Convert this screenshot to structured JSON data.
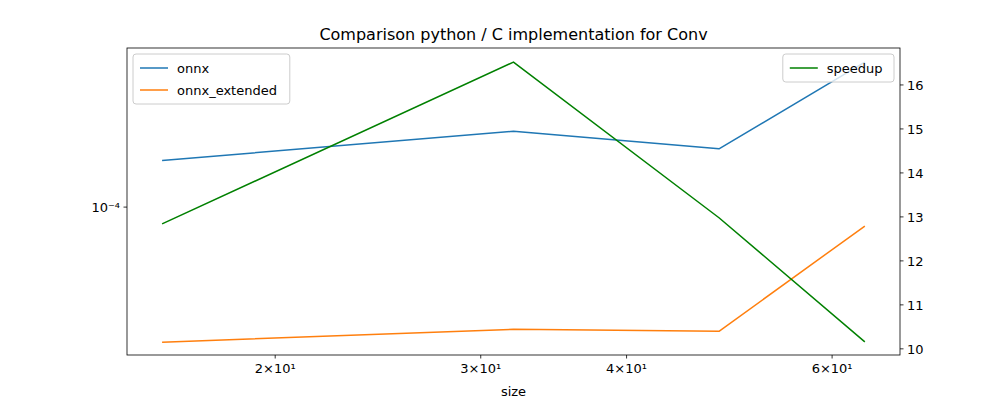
{
  "chart_data": {
    "type": "line",
    "title": "Comparison python / C implementation for Conv",
    "x_label": "size",
    "x": [
      16,
      32,
      48,
      64
    ],
    "xlim": [
      14.93,
      68.6
    ],
    "xticks": [
      {
        "value": 20,
        "label": "2×10¹"
      },
      {
        "value": 30,
        "label": "3×10¹"
      },
      {
        "value": 40,
        "label": "4×10¹"
      },
      {
        "value": 60,
        "label": "6×10¹"
      }
    ],
    "ylim": [
      3.08e-05,
      0.000355
    ],
    "yticks": [
      {
        "value": 0.0001,
        "label": "10⁻⁴"
      }
    ],
    "y2lim": [
      9.86,
      16.84
    ],
    "y2ticks": [
      10,
      11,
      12,
      13,
      14,
      15,
      16
    ],
    "log": true,
    "legend": "upper left",
    "series": [
      {
        "name": "onnx",
        "color": "#1f77b4",
        "values": [
          0.000145,
          0.000183,
          0.000159,
          0.000317
        ]
      },
      {
        "name": "onnx_extended",
        "color": "#ff7f0e",
        "values": [
          3.41e-05,
          3.78e-05,
          3.72e-05,
          8.6e-05
        ]
      },
      {
        "name": "speedup",
        "color": "#008000",
        "axis": "y2",
        "values": [
          12.84,
          16.52,
          12.98,
          10.16
        ]
      }
    ]
  }
}
